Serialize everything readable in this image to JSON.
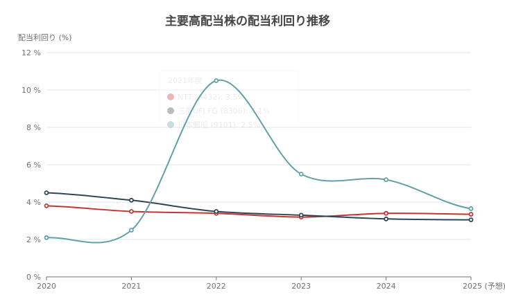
{
  "chart_data": {
    "type": "line",
    "title": "主要高配当株の配当利回り推移",
    "ylabel": "配当利回り (%)",
    "xlabel": "",
    "categories": [
      "2020",
      "2021",
      "2022",
      "2023",
      "2024",
      "2025 (予想)"
    ],
    "ylim": [
      0,
      12
    ],
    "yticks": [
      0,
      2,
      4,
      6,
      8,
      10,
      12
    ],
    "ytick_labels": [
      "0 %",
      "2 %",
      "4 %",
      "6 %",
      "8 %",
      "10 %",
      "12 %"
    ],
    "grid": true,
    "smooth": true,
    "series": [
      {
        "name": "NTT (9432)",
        "color": "#c23531",
        "values": [
          3.8,
          3.5,
          3.4,
          3.2,
          3.4,
          3.35
        ]
      },
      {
        "name": "三菱UFJ FG (8306)",
        "color": "#2f4554",
        "values": [
          4.5,
          4.1,
          3.5,
          3.3,
          3.1,
          3.05
        ]
      },
      {
        "name": "日本郵船 (9101)",
        "color": "#61a0a8",
        "values": [
          2.1,
          2.5,
          10.5,
          5.5,
          5.2,
          3.65
        ]
      }
    ],
    "tooltip": {
      "header": "2021年度",
      "rows": [
        "NTT (9432): 3.5%",
        "三菱UFJ FG (8306): 4.1%",
        "日本郵船 (9101): 2.5%"
      ]
    }
  }
}
